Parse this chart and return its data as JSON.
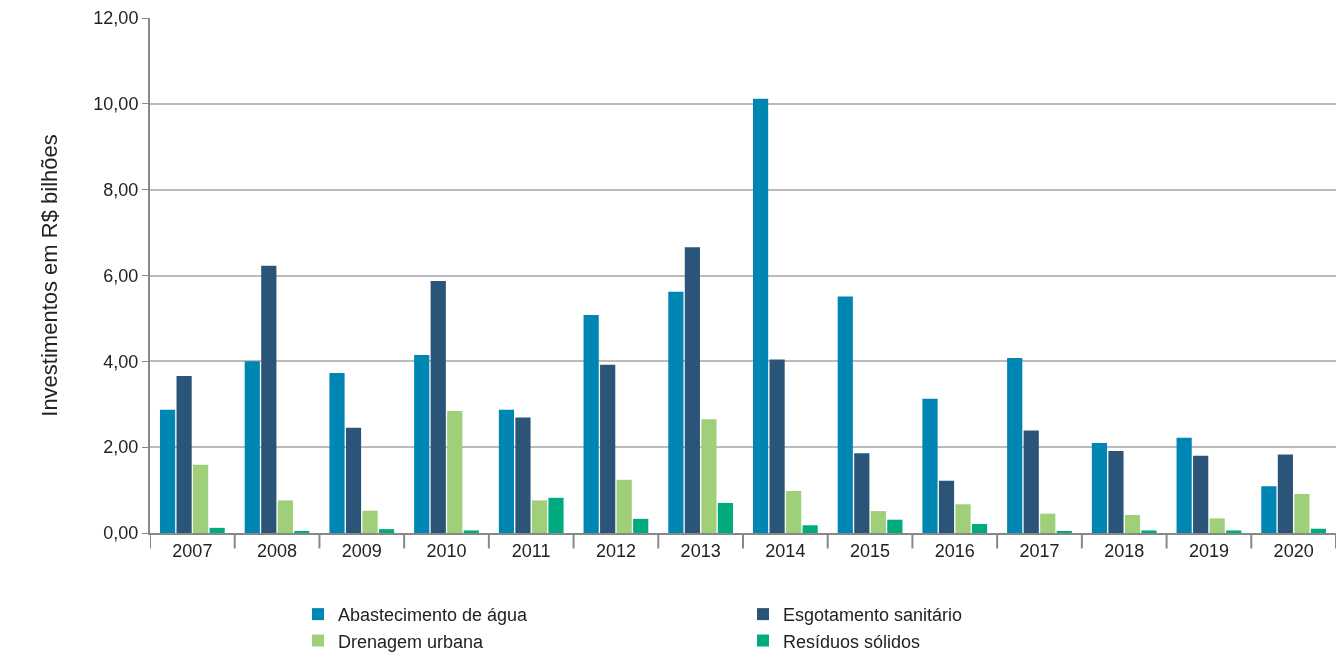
{
  "chart_data": {
    "type": "bar",
    "ylabel": "Investimentos em R$ bilhões",
    "categories": [
      "2007",
      "2008",
      "2009",
      "2010",
      "2011",
      "2012",
      "2013",
      "2014",
      "2015",
      "2016",
      "2017",
      "2018",
      "2019",
      "2020"
    ],
    "series": [
      {
        "name": "Abastecimento de água",
        "color": "#0086b3",
        "values": [
          2.87,
          4.0,
          3.73,
          4.15,
          2.87,
          5.08,
          5.62,
          10.12,
          5.51,
          3.13,
          4.08,
          2.1,
          2.22,
          1.09
        ]
      },
      {
        "name": "Esgotamento sanitário",
        "color": "#2a5478",
        "values": [
          3.66,
          6.23,
          2.45,
          5.87,
          2.69,
          3.92,
          6.66,
          4.04,
          1.86,
          1.22,
          2.39,
          1.91,
          1.8,
          1.83
        ]
      },
      {
        "name": "Drenagem urbana",
        "color": "#9fcf78",
        "values": [
          1.59,
          0.76,
          0.52,
          2.84,
          0.76,
          1.24,
          2.65,
          0.98,
          0.51,
          0.67,
          0.45,
          0.42,
          0.34,
          0.91
        ]
      },
      {
        "name": "Resíduos sólidos",
        "color": "#00ab7e",
        "values": [
          0.12,
          0.03,
          0.09,
          0.06,
          0.82,
          0.33,
          0.7,
          0.18,
          0.31,
          0.21,
          0.03,
          0.06,
          0.06,
          0.1
        ]
      }
    ],
    "ylim": [
      0,
      12
    ],
    "yticks": [
      {
        "value": 0,
        "label": "0,00"
      },
      {
        "value": 2,
        "label": "2,00"
      },
      {
        "value": 4,
        "label": "4,00"
      },
      {
        "value": 6,
        "label": "6,00"
      },
      {
        "value": 8,
        "label": "8,00"
      },
      {
        "value": 10,
        "label": "10,00"
      },
      {
        "value": 12,
        "label": "12,00"
      }
    ],
    "grid": "y",
    "legend": "bottom"
  }
}
